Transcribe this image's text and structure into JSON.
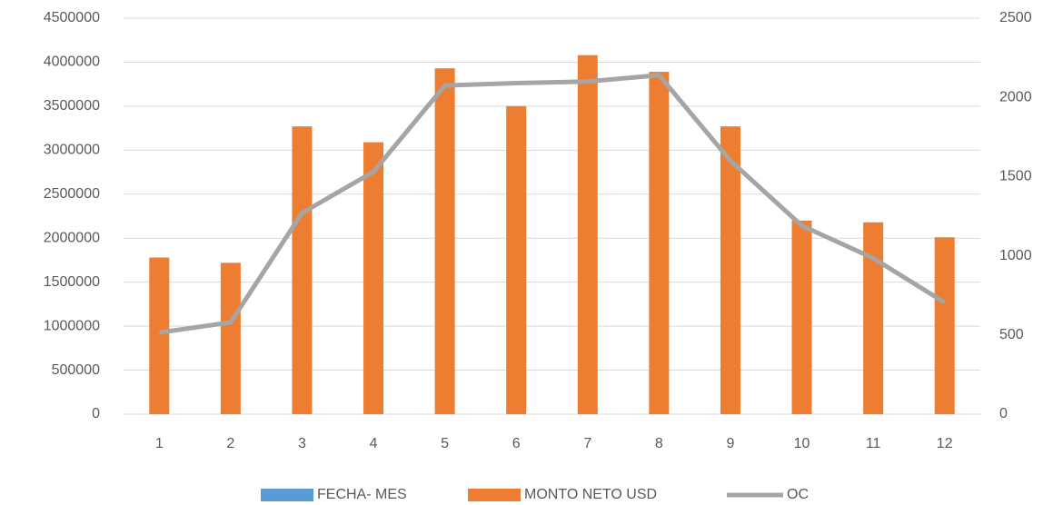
{
  "chart_data": {
    "type": "bar-line",
    "categories": [
      "1",
      "2",
      "3",
      "4",
      "5",
      "6",
      "7",
      "8",
      "9",
      "10",
      "11",
      "12"
    ],
    "series": [
      {
        "name": "FECHA- MES",
        "color": "#5b9bd5",
        "type": "bar",
        "values": [
          null,
          null,
          null,
          null,
          null,
          null,
          null,
          null,
          null,
          null,
          null,
          null
        ]
      },
      {
        "name": "MONTO NETO USD",
        "color": "#ed7d31",
        "type": "bar",
        "values": [
          1780000,
          1720000,
          3270000,
          3090000,
          3930000,
          3500000,
          4080000,
          3890000,
          3270000,
          2200000,
          2180000,
          2010000
        ]
      },
      {
        "name": "OC",
        "color": "#a5a5a5",
        "type": "line",
        "axis": "y2",
        "values": [
          515,
          580,
          1270,
          1530,
          2075,
          2090,
          2100,
          2140,
          1600,
          1190,
          985,
          705
        ]
      }
    ],
    "ylim": [
      0,
      4500000
    ],
    "yticks": [
      0,
      500000,
      1000000,
      1500000,
      2000000,
      2500000,
      3000000,
      3500000,
      4000000,
      4500000
    ],
    "y2lim": [
      0,
      2500
    ],
    "y2ticks": [
      0,
      500,
      1000,
      1500,
      2000,
      2500
    ],
    "grid": true,
    "legend": "bottom"
  }
}
